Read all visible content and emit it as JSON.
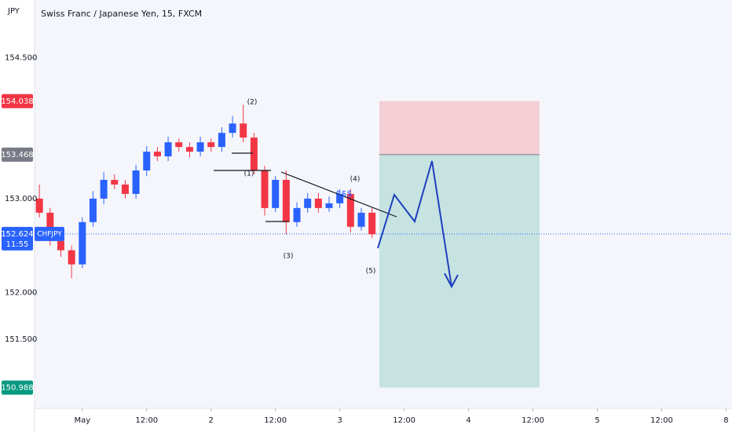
{
  "chart_data": {
    "type": "candlestick",
    "title": "Swiss Franc / Japanese Yen, 15, FXCM",
    "currency": "JPY",
    "candles": {
      "x": [
        -8,
        -6,
        -4,
        -2,
        0,
        2,
        4,
        6,
        8,
        10,
        12,
        14,
        16,
        18,
        20,
        22,
        24,
        26,
        28,
        30,
        32,
        34,
        36,
        38,
        40,
        42,
        44,
        46,
        48,
        50,
        52,
        54
      ],
      "open": [
        153.0,
        152.85,
        152.55,
        152.45,
        152.3,
        152.75,
        153.0,
        153.2,
        153.15,
        153.05,
        153.3,
        153.5,
        153.45,
        153.6,
        153.55,
        153.5,
        153.6,
        153.55,
        153.7,
        153.8,
        153.65,
        153.3,
        152.9,
        153.2,
        152.75,
        152.9,
        153.0,
        152.9,
        152.95,
        153.05,
        152.7,
        152.85
      ],
      "high": [
        153.15,
        152.9,
        152.62,
        152.5,
        152.8,
        153.08,
        153.28,
        153.26,
        153.2,
        153.36,
        153.56,
        153.55,
        153.66,
        153.64,
        153.6,
        153.66,
        153.64,
        153.76,
        153.88,
        154.0,
        153.7,
        153.35,
        153.24,
        153.3,
        152.96,
        153.06,
        153.06,
        153.02,
        153.1,
        153.1,
        152.9,
        152.9
      ],
      "low": [
        152.8,
        152.5,
        152.38,
        152.15,
        152.26,
        152.7,
        152.94,
        153.1,
        153.0,
        153.0,
        153.24,
        153.4,
        153.4,
        153.5,
        153.44,
        153.45,
        153.5,
        153.5,
        153.65,
        153.6,
        153.26,
        152.82,
        152.86,
        152.62,
        152.7,
        152.85,
        152.85,
        152.86,
        152.9,
        152.64,
        152.66,
        152.58
      ],
      "close": [
        152.85,
        152.55,
        152.45,
        152.3,
        152.75,
        153.0,
        153.2,
        153.15,
        153.05,
        153.3,
        153.5,
        153.45,
        153.6,
        153.55,
        153.5,
        153.6,
        153.55,
        153.7,
        153.8,
        153.65,
        153.3,
        152.9,
        153.2,
        152.75,
        152.9,
        153.0,
        152.9,
        152.95,
        153.05,
        152.7,
        152.85,
        152.62
      ]
    },
    "up_color": "#2962ff",
    "down_color": "#f23645",
    "xlim": [
      -8.9,
      121.1
    ],
    "ylim": [
      150.766,
      155.115
    ],
    "yticks": [
      {
        "value": 154.5,
        "label": "154.500"
      },
      {
        "value": 153,
        "label": "153.000"
      },
      {
        "value": 152,
        "label": "152.000"
      },
      {
        "value": 151.5,
        "label": "151.500"
      }
    ],
    "xticks": [
      {
        "value": 0,
        "label": "May"
      },
      {
        "value": 12,
        "label": "12:00"
      },
      {
        "value": 24,
        "label": "2"
      },
      {
        "value": 36,
        "label": "12:00"
      },
      {
        "value": 48,
        "label": "3"
      },
      {
        "value": 60,
        "label": "12:00"
      },
      {
        "value": 72,
        "label": "4"
      },
      {
        "value": 84,
        "label": "12:00"
      },
      {
        "value": 96,
        "label": "5"
      },
      {
        "value": 108,
        "label": "12:00"
      },
      {
        "value": 120,
        "label": "8"
      }
    ],
    "position": {
      "stop": 154.038,
      "entry": 153.468,
      "target": 150.988,
      "stop_color": "#f23645",
      "entry_color": "#787b86",
      "target_color": "#089981"
    },
    "last_price": {
      "value": 152.624,
      "symbol": "CHFJPY",
      "countdown": "11:55",
      "color": "#2962ff"
    },
    "annotations": [
      "(2)",
      "(1)",
      "(3)",
      "(4)",
      "(5)",
      "$$$"
    ]
  }
}
